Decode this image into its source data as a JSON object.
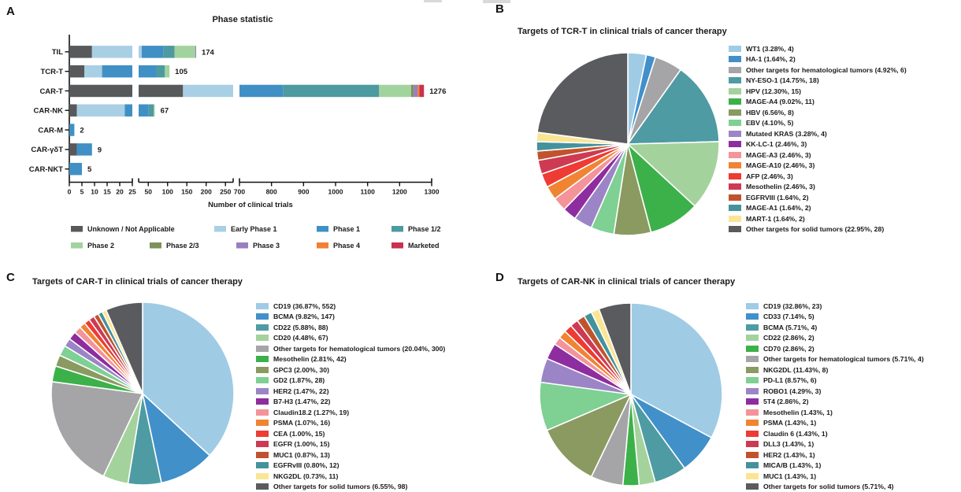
{
  "colors": {
    "unknown": "#58595b",
    "early_phase1": "#a9cfe5",
    "phase1": "#4090c5",
    "phase1_2": "#4d9aa0",
    "phase2": "#a2d39e",
    "phase2_3": "#7e9159",
    "phase3": "#987fc0",
    "phase4": "#f08033",
    "marketed": "#c73250",
    "lightblue": "#a0cbe5",
    "blue": "#4190ca",
    "teal": "#4e9ba3",
    "gray": "#a5a4a7",
    "lightgreen": "#a4d29c",
    "green": "#3cb14a",
    "olive": "#8a9a60",
    "medgreen": "#7ed093",
    "lightpurple": "#9b85c6",
    "purple": "#8e2d9f",
    "salmon": "#f4939a",
    "orange": "#f08433",
    "red": "#ee3b33",
    "crimson": "#ce3a53",
    "brick": "#c0532e",
    "teal2": "#44929c",
    "yellow": "#fae595",
    "darkgray": "#595b5e",
    "axis": "#111111"
  },
  "panels": {
    "A": {
      "letter": "A",
      "title": "Phase statistic"
    },
    "B": {
      "letter": "B",
      "title": "Targets of TCR-T in clinical trials of cancer therapy"
    },
    "C": {
      "letter": "C",
      "title": "Targets of CAR-T in clinical trials of cancer therapy"
    },
    "D": {
      "letter": "D",
      "title": "Targets of CAR-NK in clinical trials of cancer therapy"
    }
  },
  "chart_data": [
    {
      "type": "bar",
      "panel": "A",
      "title": "Phase statistic",
      "xlabel": "Number of clinical trials",
      "orientation": "horizontal-stacked",
      "axis_break": true,
      "axis_segments": [
        {
          "domain": [
            0,
            25
          ],
          "ticks": [
            0,
            5,
            10,
            15,
            20,
            25
          ]
        },
        {
          "domain": [
            25,
            270
          ],
          "ticks": [
            50,
            100,
            150,
            200,
            250
          ]
        },
        {
          "domain": [
            700,
            1300
          ],
          "ticks": [
            700,
            800,
            900,
            1000,
            1100,
            1200,
            1300
          ]
        }
      ],
      "categories": [
        "TIL",
        "TCR-T",
        "CAR-T",
        "CAR-NK",
        "CAR-M",
        "CAR-γδT",
        "CAR-NKT"
      ],
      "totals": [
        174,
        105,
        1276,
        67,
        2,
        9,
        5
      ],
      "series": [
        {
          "name": "Unknown / Not Applicable",
          "color": "unknown",
          "values": [
            9,
            6,
            140,
            3,
            0,
            3,
            0
          ]
        },
        {
          "name": "Early Phase 1",
          "color": "early_phase1",
          "values": [
            24,
            7,
            460,
            19,
            0,
            0,
            0
          ]
        },
        {
          "name": "Phase 1",
          "color": "phase1",
          "values": [
            56,
            58,
            236,
            29,
            2,
            6,
            5
          ]
        },
        {
          "name": "Phase 1/2",
          "color": "phase1_2",
          "values": [
            29,
            22,
            300,
            13,
            0,
            0,
            0
          ]
        },
        {
          "name": "Phase 2",
          "color": "phase2",
          "values": [
            54,
            12,
            100,
            3,
            0,
            0,
            0
          ]
        },
        {
          "name": "Phase 2/3",
          "color": "phase2_3",
          "values": [
            0,
            0,
            8,
            0,
            0,
            0,
            0
          ]
        },
        {
          "name": "Phase 3",
          "color": "phase3",
          "values": [
            2,
            0,
            12,
            0,
            0,
            0,
            0
          ]
        },
        {
          "name": "Phase 4",
          "color": "phase4",
          "values": [
            0,
            0,
            6,
            0,
            0,
            0,
            0
          ]
        },
        {
          "name": "Marketed",
          "color": "marketed",
          "values": [
            0,
            0,
            14,
            0,
            0,
            0,
            0
          ]
        }
      ],
      "legend_position": "bottom"
    },
    {
      "type": "pie",
      "panel": "B",
      "title": "Targets of TCR-T in clinical trials of cancer therapy",
      "start": "top",
      "direction": "clockwise",
      "legend_format": "{label} ({pct}%, {count})",
      "slices": [
        {
          "label": "WT1",
          "pct": "3.28",
          "count": 4,
          "color": "lightblue"
        },
        {
          "label": "HA-1",
          "pct": "1.64",
          "count": 2,
          "color": "blue"
        },
        {
          "label": "Other targets for hematological tumors",
          "pct": "4.92",
          "count": 6,
          "color": "gray"
        },
        {
          "label": "NY-ESO-1",
          "pct": "14.75",
          "count": 18,
          "color": "teal"
        },
        {
          "label": "HPV",
          "pct": "12.30",
          "count": 15,
          "color": "lightgreen"
        },
        {
          "label": "MAGE-A4",
          "pct": "9.02",
          "count": 11,
          "color": "green"
        },
        {
          "label": "HBV",
          "pct": "6.56",
          "count": 8,
          "color": "olive"
        },
        {
          "label": "EBV",
          "pct": "4.10",
          "count": 5,
          "color": "medgreen"
        },
        {
          "label": "Mutated KRAS",
          "pct": "3.28",
          "count": 4,
          "color": "lightpurple"
        },
        {
          "label": "KK-LC-1",
          "pct": "2.46",
          "count": 3,
          "color": "purple"
        },
        {
          "label": "MAGE-A3",
          "pct": "2.46",
          "count": 3,
          "color": "salmon"
        },
        {
          "label": "MAGE-A10",
          "pct": "2.46",
          "count": 3,
          "color": "orange"
        },
        {
          "label": "AFP",
          "pct": "2.46",
          "count": 3,
          "color": "red"
        },
        {
          "label": "Mesothelin",
          "pct": "2.46",
          "count": 3,
          "color": "crimson"
        },
        {
          "label": "EGFRVIII",
          "pct": "1.64",
          "count": 2,
          "color": "brick"
        },
        {
          "label": "MAGE-A1",
          "pct": "1.64",
          "count": 2,
          "color": "teal2"
        },
        {
          "label": "MART-1",
          "pct": "1.64",
          "count": 2,
          "color": "yellow"
        },
        {
          "label": "Other targets for solid tumors",
          "pct": "22.95",
          "count": 28,
          "color": "darkgray"
        }
      ]
    },
    {
      "type": "pie",
      "panel": "C",
      "title": "Targets of CAR-T in clinical trials of cancer therapy",
      "start": "top",
      "direction": "clockwise",
      "legend_format": "{label} ({pct}%, {count})",
      "slices": [
        {
          "label": "CD19",
          "pct": "36.87",
          "count": 552,
          "color": "lightblue"
        },
        {
          "label": "BCMA",
          "pct": "9.82",
          "count": 147,
          "color": "blue"
        },
        {
          "label": "CD22",
          "pct": "5.88",
          "count": 88,
          "color": "teal"
        },
        {
          "label": "CD20",
          "pct": "4.48",
          "count": 67,
          "color": "lightgreen"
        },
        {
          "label": "Other targets for hematological tumors",
          "pct": "20.04",
          "count": 300,
          "color": "gray"
        },
        {
          "label": "Mesothelin",
          "pct": "2.81",
          "count": 42,
          "color": "green"
        },
        {
          "label": "GPC3",
          "pct": "2.00",
          "count": 30,
          "color": "olive"
        },
        {
          "label": "GD2",
          "pct": "1.87",
          "count": 28,
          "color": "medgreen"
        },
        {
          "label": "HER2",
          "pct": "1.47",
          "count": 22,
          "color": "lightpurple"
        },
        {
          "label": "B7-H3",
          "pct": "1.47",
          "count": 22,
          "color": "purple"
        },
        {
          "label": "Claudin18.2",
          "pct": "1.27",
          "count": 19,
          "color": "salmon"
        },
        {
          "label": "PSMA",
          "pct": "1.07",
          "count": 16,
          "color": "orange"
        },
        {
          "label": "CEA",
          "pct": "1.00",
          "count": 15,
          "color": "red"
        },
        {
          "label": "EGFR",
          "pct": "1.00",
          "count": 15,
          "color": "crimson"
        },
        {
          "label": "MUC1",
          "pct": "0.87",
          "count": 13,
          "color": "brick"
        },
        {
          "label": "EGFRvIII",
          "pct": "0.80",
          "count": 12,
          "color": "teal2"
        },
        {
          "label": "NKG2DL",
          "pct": "0.73",
          "count": 11,
          "color": "yellow"
        },
        {
          "label": "Other targets for solid tumors",
          "pct": "6.55",
          "count": 98,
          "color": "darkgray"
        }
      ]
    },
    {
      "type": "pie",
      "panel": "D",
      "title": "Targets of CAR-NK in clinical trials of cancer therapy",
      "start": "top",
      "direction": "clockwise",
      "legend_format": "{label} ({pct}%, {count})",
      "slices": [
        {
          "label": "CD19",
          "pct": "32.86",
          "count": 23,
          "color": "lightblue"
        },
        {
          "label": "CD33",
          "pct": "7.14",
          "count": 5,
          "color": "blue"
        },
        {
          "label": "BCMA",
          "pct": "5.71",
          "count": 4,
          "color": "teal"
        },
        {
          "label": "CD22",
          "pct": "2.86",
          "count": 2,
          "color": "lightgreen"
        },
        {
          "label": "CD70",
          "pct": "2.86",
          "count": 2,
          "color": "green"
        },
        {
          "label": "Other targets for hematological tumors",
          "pct": "5.71",
          "count": 4,
          "color": "gray"
        },
        {
          "label": "NKG2DL",
          "pct": "11.43",
          "count": 8,
          "color": "olive"
        },
        {
          "label": "PD-L1",
          "pct": "8.57",
          "count": 6,
          "color": "medgreen"
        },
        {
          "label": "ROBO1",
          "pct": "4.29",
          "count": 3,
          "color": "lightpurple"
        },
        {
          "label": "5T4",
          "pct": "2.86",
          "count": 2,
          "color": "purple"
        },
        {
          "label": "Mesothelin",
          "pct": "1.43",
          "count": 1,
          "color": "salmon"
        },
        {
          "label": "PSMA",
          "pct": "1.43",
          "count": 1,
          "color": "orange"
        },
        {
          "label": "Claudin 6",
          "pct": "1.43",
          "count": 1,
          "color": "red"
        },
        {
          "label": "DLL3",
          "pct": "1.43",
          "count": 1,
          "color": "crimson"
        },
        {
          "label": "HER2",
          "pct": "1.43",
          "count": 1,
          "color": "brick"
        },
        {
          "label": "MICA/B",
          "pct": "1.43",
          "count": 1,
          "color": "teal2"
        },
        {
          "label": "MUC1",
          "pct": "1.43",
          "count": 1,
          "color": "yellow"
        },
        {
          "label": "Other targets for solid tumors",
          "pct": "5.71",
          "count": 4,
          "color": "darkgray"
        }
      ]
    }
  ]
}
